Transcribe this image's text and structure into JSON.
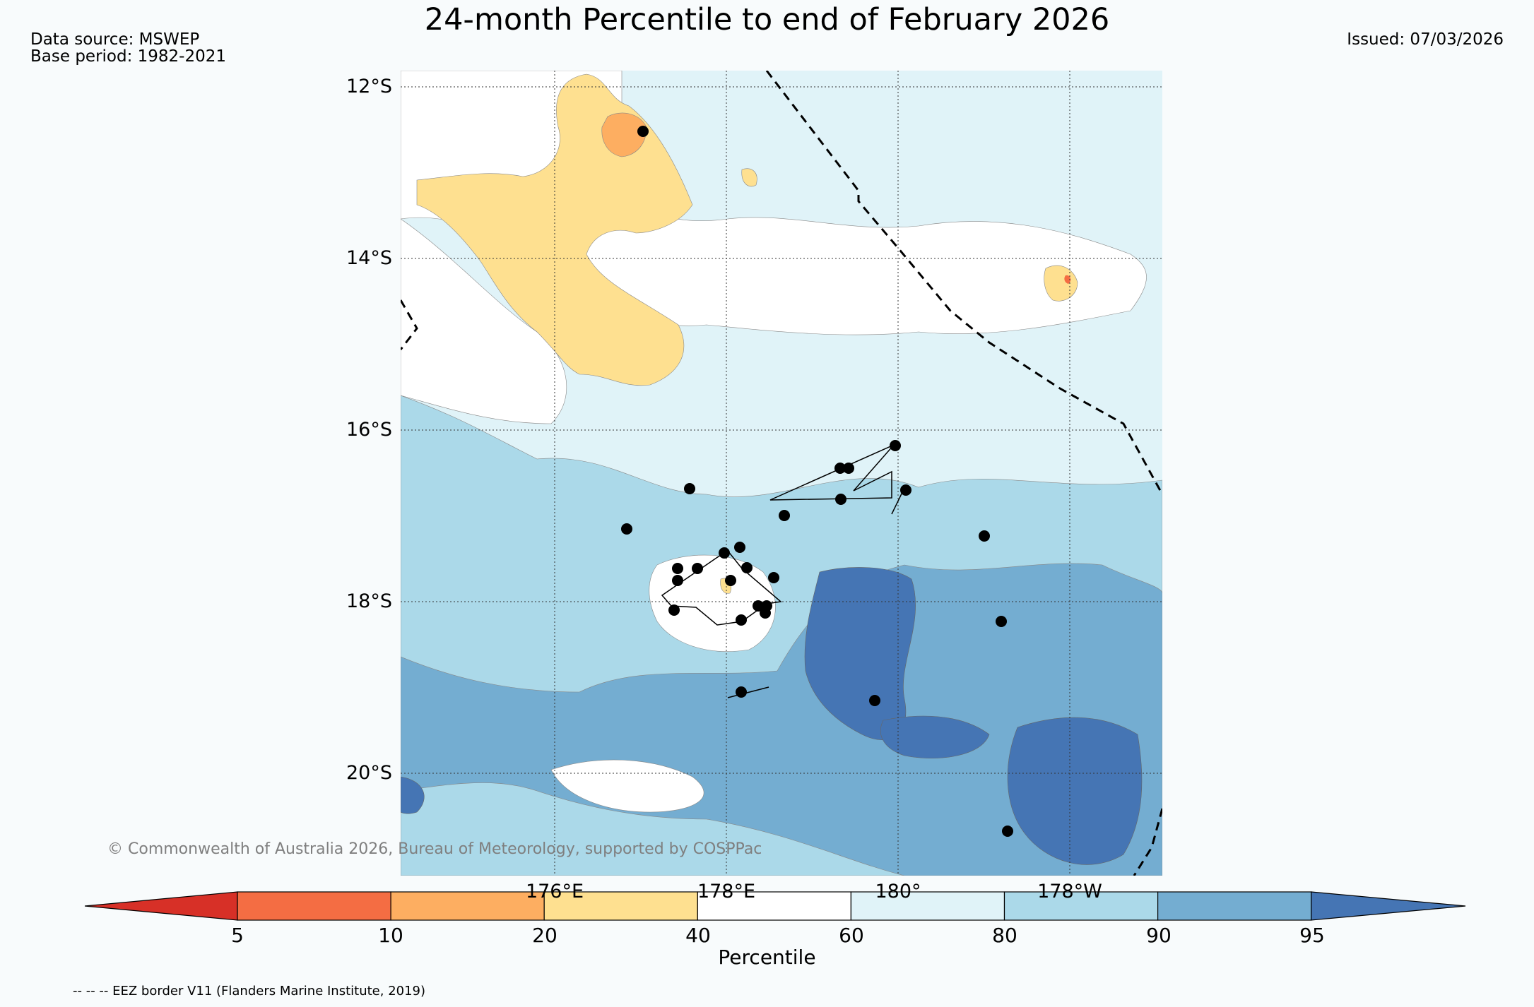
{
  "title": "24-month Percentile to end of February 2026",
  "meta": {
    "data_source": "Data source: MSWEP",
    "base_period": "Base period: 1982-2021",
    "issued": "Issued: 07/03/2026"
  },
  "map": {
    "lat_labels": [
      "12°S",
      "14°S",
      "16°S",
      "18°S",
      "20°S"
    ],
    "lon_labels": [
      "176°E",
      "178°E",
      "180°",
      "178°W"
    ],
    "copyright": "© Commonwealth of Australia 2026, Bureau of Meteorology, supported by COSPPac",
    "eez_line_color": "#000000",
    "station_color": "#000000"
  },
  "colorbar": {
    "title": "Percentile",
    "ticks": [
      "5",
      "10",
      "20",
      "40",
      "60",
      "80",
      "90",
      "95"
    ],
    "colors": [
      "#d73027",
      "#f46d43",
      "#fdae61",
      "#fee090",
      "#ffffff",
      "#e0f3f8",
      "#abd9e9",
      "#74add1",
      "#4575b4"
    ]
  },
  "footer": "-- -- -- EEZ border V11 (Flanders Marine Institute, 2019)"
}
